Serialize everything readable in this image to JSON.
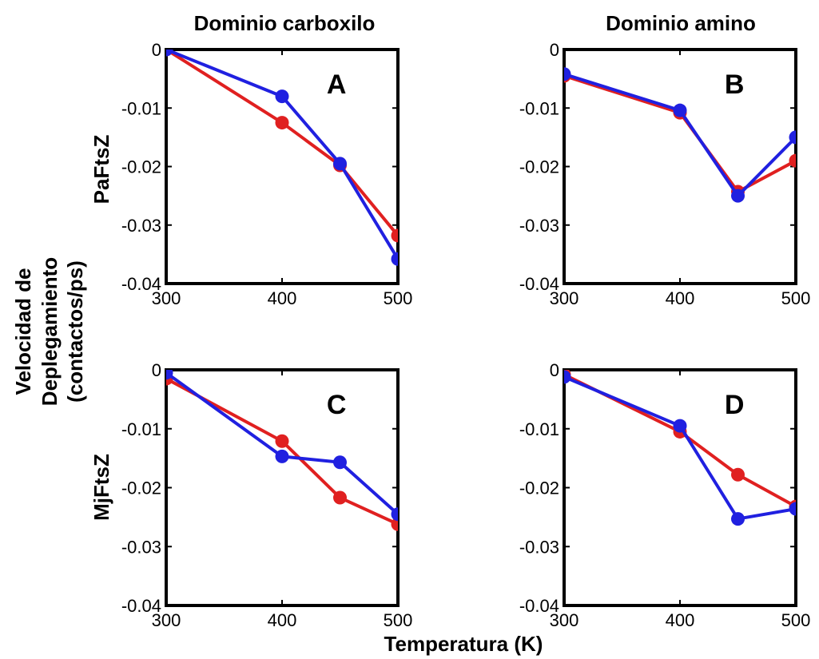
{
  "figure": {
    "col_titles": [
      "Dominio carboxilo",
      "Dominio amino"
    ],
    "row_titles": [
      "PaFtsZ",
      "MjFtsZ"
    ],
    "ylabel_lines": [
      "Velocidad de",
      "Deplegamiento",
      "(contactos/ps)"
    ],
    "xlabel": "Temperatura (K)"
  },
  "chart_data": [
    {
      "type": "line",
      "panel": "A",
      "x": [
        300,
        400,
        450,
        500
      ],
      "series": [
        {
          "color": "#e02020",
          "values": [
            0,
            -0.0125,
            -0.0198,
            -0.0318
          ]
        },
        {
          "color": "#2020e0",
          "values": [
            0,
            -0.008,
            -0.0195,
            -0.0358
          ]
        }
      ],
      "xlim": [
        300,
        500
      ],
      "ylim": [
        -0.04,
        0
      ],
      "xticks": [
        300,
        400,
        500
      ],
      "yticks": [
        0,
        -0.01,
        -0.02,
        -0.03,
        -0.04
      ],
      "ytick_labels": [
        "0",
        "-0.01",
        "-0.02",
        "-0.03",
        "-0.04"
      ]
    },
    {
      "type": "line",
      "panel": "B",
      "x": [
        300,
        400,
        450,
        500
      ],
      "series": [
        {
          "color": "#e02020",
          "values": [
            -0.0045,
            -0.0108,
            -0.0243,
            -0.019
          ]
        },
        {
          "color": "#2020e0",
          "values": [
            -0.0042,
            -0.0104,
            -0.025,
            -0.015
          ]
        }
      ],
      "xlim": [
        300,
        500
      ],
      "ylim": [
        -0.04,
        0
      ],
      "xticks": [
        300,
        400,
        500
      ],
      "yticks": [
        0,
        -0.01,
        -0.02,
        -0.03,
        -0.04
      ],
      "ytick_labels": [
        "0",
        "-0.01",
        "-0.02",
        "-0.03",
        "-0.04"
      ]
    },
    {
      "type": "line",
      "panel": "C",
      "x": [
        300,
        400,
        450,
        500
      ],
      "series": [
        {
          "color": "#e02020",
          "values": [
            -0.0015,
            -0.0121,
            -0.0217,
            -0.0262
          ]
        },
        {
          "color": "#2020e0",
          "values": [
            -0.0005,
            -0.0147,
            -0.0157,
            -0.0245
          ]
        }
      ],
      "xlim": [
        300,
        500
      ],
      "ylim": [
        -0.04,
        0
      ],
      "xticks": [
        300,
        400,
        500
      ],
      "yticks": [
        0,
        -0.01,
        -0.02,
        -0.03,
        -0.04
      ],
      "ytick_labels": [
        "0",
        "-0.01",
        "-0.02",
        "-0.03",
        "-0.04"
      ]
    },
    {
      "type": "line",
      "panel": "D",
      "x": [
        300,
        400,
        450,
        500
      ],
      "series": [
        {
          "color": "#e02020",
          "values": [
            -0.0008,
            -0.0105,
            -0.0178,
            -0.0232
          ]
        },
        {
          "color": "#2020e0",
          "values": [
            -0.0012,
            -0.0095,
            -0.0253,
            -0.0236
          ]
        }
      ],
      "xlim": [
        300,
        500
      ],
      "ylim": [
        -0.04,
        0
      ],
      "xticks": [
        300,
        400,
        500
      ],
      "yticks": [
        0,
        -0.01,
        -0.02,
        -0.03,
        -0.04
      ],
      "ytick_labels": [
        "0",
        "-0.01",
        "-0.02",
        "-0.03",
        "-0.04"
      ]
    }
  ]
}
